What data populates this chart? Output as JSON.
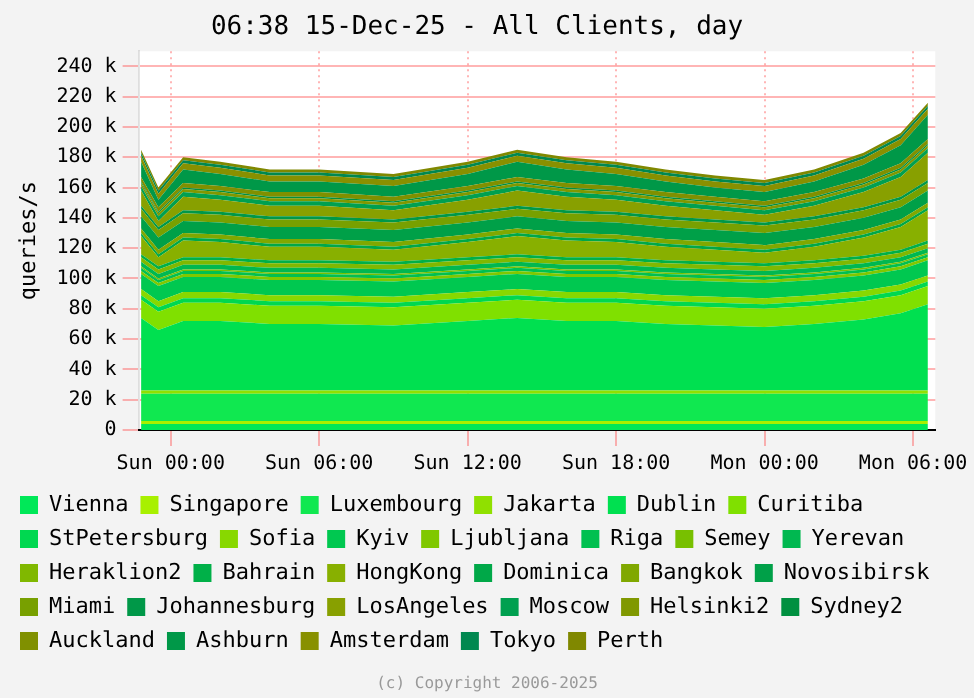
{
  "chart_data": {
    "type": "area",
    "stacked": true,
    "title": "06:38 15-Dec-25 - All Clients, day",
    "ylabel": "queries/s",
    "annotations": [
      "(c) Copyright 2006-2025"
    ],
    "grid": true,
    "legend": "bottom",
    "marker": "none",
    "x": [
      "2025-12-13T22:48",
      "2025-12-13T23:30",
      "2025-12-14T00:30",
      "2025-12-14T02:00",
      "2025-12-14T04:00",
      "2025-12-14T06:00",
      "2025-12-14T09:00",
      "2025-12-14T12:00",
      "2025-12-14T14:00",
      "2025-12-14T16:00",
      "2025-12-14T18:00",
      "2025-12-14T20:00",
      "2025-12-14T22:00",
      "2025-12-15T00:00",
      "2025-12-15T02:00",
      "2025-12-15T04:00",
      "2025-12-15T05:30",
      "2025-12-15T06:36"
    ],
    "xlim": [
      "2025-12-13T22:42",
      "2025-12-15T06:54"
    ],
    "xticks": [
      {
        "value": "2025-12-14T00:00",
        "label": "Sun 00:00"
      },
      {
        "value": "2025-12-14T06:00",
        "label": "Sun 06:00"
      },
      {
        "value": "2025-12-14T12:00",
        "label": "Sun 12:00"
      },
      {
        "value": "2025-12-14T18:00",
        "label": "Sun 18:00"
      },
      {
        "value": "2025-12-15T00:00",
        "label": "Mon 00:00"
      },
      {
        "value": "2025-12-15T06:00",
        "label": "Mon 06:00"
      }
    ],
    "ylim": [
      0,
      250000
    ],
    "yticks": [
      0,
      {
        "value": 20000,
        "label": "20 k"
      },
      {
        "value": 40000,
        "label": "40 k"
      },
      {
        "value": 60000,
        "label": "60 k"
      },
      {
        "value": 80000,
        "label": "80 k"
      },
      {
        "value": 100000,
        "label": "100 k"
      },
      {
        "value": 120000,
        "label": "120 k"
      },
      {
        "value": 140000,
        "label": "140 k"
      },
      {
        "value": 160000,
        "label": "160 k"
      },
      {
        "value": 180000,
        "label": "180 k"
      },
      {
        "value": 200000,
        "label": "200 k"
      },
      {
        "value": 220000,
        "label": "220 k"
      },
      {
        "value": 240000,
        "label": "240 k"
      }
    ],
    "series": [
      {
        "name": "Vienna",
        "color": "#00e858",
        "values": [
          4000,
          4000,
          4000,
          4000,
          4000,
          4000,
          4000,
          4000,
          4000,
          4000,
          4000,
          4000,
          4000,
          4000,
          4000,
          4000,
          4000,
          4000
        ]
      },
      {
        "name": "Singapore",
        "color": "#a8f000",
        "values": [
          2000,
          2000,
          2000,
          2000,
          2000,
          2000,
          2000,
          2000,
          2000,
          2000,
          2000,
          2000,
          2000,
          2000,
          2000,
          2000,
          2000,
          2000
        ]
      },
      {
        "name": "Luxembourg",
        "color": "#10e850",
        "values": [
          18000,
          18000,
          18000,
          18000,
          18000,
          18000,
          18000,
          18000,
          18000,
          18000,
          18000,
          18000,
          18000,
          18000,
          18000,
          18000,
          18000,
          18000
        ]
      },
      {
        "name": "Jakarta",
        "color": "#90e000",
        "values": [
          2000,
          2000,
          2000,
          2000,
          2000,
          2000,
          2000,
          2000,
          2000,
          2000,
          2000,
          2000,
          2000,
          2000,
          2000,
          2000,
          2000,
          2000
        ]
      },
      {
        "name": "Dublin",
        "color": "#00e050",
        "values": [
          48000,
          40000,
          46000,
          46000,
          44000,
          44000,
          43000,
          46000,
          48000,
          46000,
          46000,
          44000,
          43000,
          42000,
          44000,
          47000,
          51000,
          57000
        ]
      },
      {
        "name": "Curitiba",
        "color": "#80e000",
        "values": [
          12000,
          12000,
          12000,
          12000,
          12000,
          12000,
          12000,
          12000,
          12000,
          12000,
          12000,
          12000,
          12000,
          12000,
          12000,
          12000,
          12000,
          12000
        ]
      },
      {
        "name": "StPetersburg",
        "color": "#00d850",
        "values": [
          3000,
          3000,
          3000,
          3000,
          3000,
          3000,
          3000,
          3000,
          3000,
          3000,
          3000,
          3000,
          3000,
          3000,
          3000,
          3000,
          3000,
          3000
        ]
      },
      {
        "name": "Sofia",
        "color": "#88d800",
        "values": [
          4000,
          4000,
          4000,
          4000,
          4000,
          4000,
          4000,
          4000,
          4000,
          4000,
          4000,
          4000,
          4000,
          4000,
          4000,
          4000,
          4000,
          4000
        ]
      },
      {
        "name": "Kyiv",
        "color": "#00c850",
        "values": [
          10000,
          10000,
          10000,
          10000,
          10000,
          10000,
          10000,
          10000,
          10000,
          10000,
          10000,
          10000,
          10000,
          10000,
          10000,
          10000,
          10000,
          10000
        ]
      },
      {
        "name": "Ljubljana",
        "color": "#80c800",
        "values": [
          2000,
          2000,
          2000,
          2000,
          2000,
          2000,
          2000,
          2000,
          2000,
          2000,
          2000,
          2000,
          2000,
          2000,
          2000,
          2000,
          2000,
          2000
        ]
      },
      {
        "name": "Riga",
        "color": "#00c050",
        "values": [
          2000,
          2000,
          2000,
          2000,
          2000,
          2000,
          2000,
          2000,
          2000,
          2000,
          2000,
          2000,
          2000,
          2000,
          2000,
          2000,
          2000,
          2000
        ]
      },
      {
        "name": "Semey",
        "color": "#78c000",
        "values": [
          1000,
          1000,
          1000,
          1000,
          1000,
          1000,
          1000,
          1000,
          1000,
          1000,
          1000,
          1000,
          1000,
          1000,
          1000,
          1000,
          1000,
          1000
        ]
      },
      {
        "name": "Yerevan",
        "color": "#00b850",
        "values": [
          3000,
          3000,
          3000,
          3000,
          3000,
          3000,
          3000,
          3000,
          3000,
          3000,
          3000,
          3000,
          3000,
          3000,
          3000,
          3000,
          3000,
          3000
        ]
      },
      {
        "name": "Heraklion2",
        "color": "#80b800",
        "values": [
          3000,
          3000,
          3000,
          3000,
          3000,
          3000,
          3000,
          3000,
          3000,
          3000,
          3000,
          3000,
          3000,
          3000,
          3000,
          3000,
          3000,
          3000
        ]
      },
      {
        "name": "Bahrain",
        "color": "#00b048",
        "values": [
          2000,
          2000,
          2000,
          2000,
          2000,
          2000,
          2000,
          2000,
          2000,
          2000,
          2000,
          2000,
          2000,
          2000,
          2000,
          2000,
          2000,
          2000
        ]
      },
      {
        "name": "HongKong",
        "color": "#88b000",
        "values": [
          12000,
          6000,
          11000,
          10000,
          9000,
          9000,
          8000,
          10000,
          12000,
          11000,
          10000,
          9000,
          8000,
          7000,
          9000,
          12000,
          15000,
          20000
        ]
      },
      {
        "name": "Dominica",
        "color": "#00a848",
        "values": [
          2000,
          2000,
          2000,
          2000,
          2000,
          2000,
          2000,
          2000,
          2000,
          2000,
          2000,
          2000,
          2000,
          2000,
          2000,
          2000,
          2000,
          2000
        ]
      },
      {
        "name": "Bangkok",
        "color": "#80a800",
        "values": [
          3000,
          3000,
          3000,
          3000,
          3000,
          3000,
          3000,
          3000,
          3000,
          3000,
          3000,
          3000,
          3000,
          3000,
          3000,
          3000,
          3000,
          3000
        ]
      },
      {
        "name": "Novosibirsk",
        "color": "#00a048",
        "values": [
          8000,
          8000,
          8000,
          8000,
          8000,
          8000,
          8000,
          8000,
          8000,
          8000,
          8000,
          8000,
          8000,
          8000,
          8000,
          8000,
          8000,
          8000
        ]
      },
      {
        "name": "Miami",
        "color": "#78a000",
        "values": [
          5000,
          5000,
          5000,
          5000,
          5000,
          5000,
          5000,
          5000,
          5000,
          5000,
          5000,
          5000,
          5000,
          5000,
          5000,
          5000,
          5000,
          5000
        ]
      },
      {
        "name": "Johannesburg",
        "color": "#009848",
        "values": [
          2000,
          2000,
          2000,
          2000,
          2000,
          2000,
          2000,
          2000,
          2000,
          2000,
          2000,
          2000,
          2000,
          2000,
          2000,
          2000,
          2000,
          2000
        ]
      },
      {
        "name": "LosAngeles",
        "color": "#88a000",
        "values": [
          10000,
          4000,
          9000,
          8000,
          7000,
          7000,
          6000,
          8000,
          10000,
          9000,
          8000,
          7000,
          6000,
          5000,
          7000,
          10000,
          13000,
          18000
        ]
      },
      {
        "name": "Moscow",
        "color": "#00a050",
        "values": [
          3000,
          3000,
          3000,
          3000,
          3000,
          3000,
          3000,
          3000,
          3000,
          3000,
          3000,
          3000,
          3000,
          3000,
          3000,
          3000,
          3000,
          3000
        ]
      },
      {
        "name": "Helsinki2",
        "color": "#809800",
        "values": [
          2000,
          2000,
          2000,
          2000,
          2000,
          2000,
          2000,
          2000,
          2000,
          2000,
          2000,
          2000,
          2000,
          2000,
          2000,
          2000,
          2000,
          2000
        ]
      },
      {
        "name": "Sydney2",
        "color": "#009040",
        "values": [
          1000,
          1000,
          1000,
          1000,
          1000,
          1000,
          1000,
          1000,
          1000,
          1000,
          1000,
          1000,
          1000,
          1000,
          1000,
          1000,
          1000,
          1000
        ]
      },
      {
        "name": "Auckland",
        "color": "#809000",
        "values": [
          3000,
          3000,
          3000,
          3000,
          3000,
          3000,
          3000,
          3000,
          3000,
          3000,
          3000,
          3000,
          3000,
          3000,
          3000,
          3000,
          3000,
          3000
        ]
      },
      {
        "name": "Ashburn",
        "color": "#009848",
        "values": [
          10000,
          5000,
          9000,
          8000,
          7000,
          7000,
          7000,
          8000,
          10000,
          9000,
          8000,
          7000,
          6000,
          6000,
          7000,
          9000,
          12000,
          16000
        ]
      },
      {
        "name": "Amsterdam",
        "color": "#889000",
        "values": [
          4000,
          4000,
          4000,
          4000,
          4000,
          4000,
          4000,
          4000,
          4000,
          4000,
          4000,
          4000,
          4000,
          4000,
          4000,
          4000,
          4000,
          4000
        ]
      },
      {
        "name": "Tokyo",
        "color": "#008850",
        "values": [
          2000,
          2000,
          2000,
          2000,
          2000,
          2000,
          2000,
          2000,
          2000,
          2000,
          2000,
          2000,
          2000,
          2000,
          2000,
          2000,
          2000,
          2000
        ]
      },
      {
        "name": "Perth",
        "color": "#808800",
        "values": [
          2000,
          2000,
          2000,
          2000,
          2000,
          2000,
          2000,
          2000,
          2000,
          2000,
          2000,
          2000,
          2000,
          2000,
          2000,
          2000,
          2000,
          2000
        ]
      }
    ]
  }
}
